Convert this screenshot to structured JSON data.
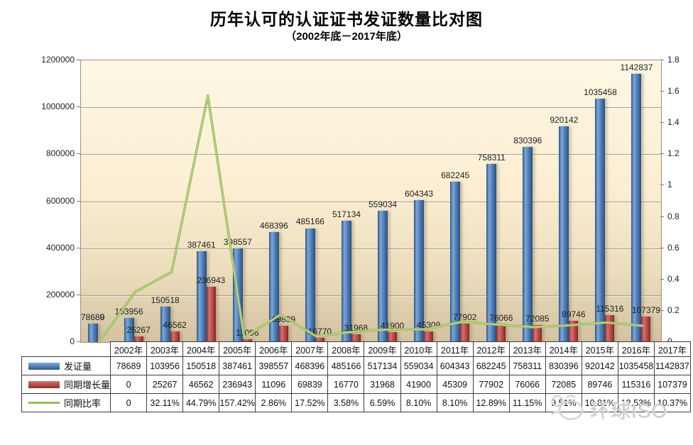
{
  "title": "历年认可的认证证书发证数量比对图",
  "subtitle": "（2002年底－2017年底）",
  "watermark_text": "环球ISO",
  "colors": {
    "bar_blue": "#4f81bd",
    "bar_red": "#c0504d",
    "line_green": "#9bbb59",
    "plot_bg_top": "#fdf7e4",
    "plot_bg_bottom": "#d2c2a0",
    "gridline": "#a89f8c"
  },
  "chart_data": {
    "type": "combo-bar-line",
    "title": "历年认可的认证证书发证数量比对图",
    "subtitle": "（2002年底－2017年底）",
    "grid": true,
    "legend_position": "table-rows-left",
    "categories": [
      "2002年",
      "2003年",
      "2004年",
      "2005年",
      "2006年",
      "2007年",
      "2008年",
      "2009年",
      "2010年",
      "2011年",
      "2012年",
      "2013年",
      "2014年",
      "2015年",
      "2016年",
      "2017年"
    ],
    "series": [
      {
        "name": "发证量",
        "type": "bar",
        "axis": "left",
        "color": "#4f81bd",
        "values": [
          78689,
          103956,
          150518,
          387461,
          398557,
          468396,
          485166,
          517134,
          559034,
          604343,
          682245,
          758311,
          830396,
          920142,
          1035458,
          1142837
        ]
      },
      {
        "name": "同期增长量",
        "type": "bar",
        "axis": "left",
        "color": "#c0504d",
        "values": [
          0,
          25267,
          46562,
          236943,
          11096,
          69839,
          16770,
          31968,
          41900,
          45309,
          77902,
          76066,
          72085,
          89746,
          115316,
          107379
        ]
      },
      {
        "name": "同期比率",
        "type": "line",
        "axis": "right",
        "color": "#9bbb59",
        "values": [
          0,
          0.3211,
          0.4479,
          1.5742,
          0.0286,
          0.1752,
          0.0358,
          0.0659,
          0.081,
          0.081,
          0.1289,
          0.1115,
          0.0951,
          0.1081,
          0.1253,
          0.1037
        ],
        "display_values": [
          "0",
          "32.11%",
          "44.79%",
          "157.42%",
          "2.86%",
          "17.52%",
          "3.58%",
          "6.59%",
          "8.10%",
          "8.10%",
          "12.89%",
          "11.15%",
          "9.51%",
          "10.81%",
          "12.53%",
          "10.37%"
        ]
      }
    ],
    "left_axis": {
      "min": 0,
      "max": 1200000,
      "step": 200000,
      "tick_labels": [
        "0",
        "200000",
        "400000",
        "600000",
        "800000",
        "1000000",
        "1200000"
      ]
    },
    "right_axis": {
      "min": 0,
      "max": 1.8,
      "step": 0.2,
      "tick_labels": [
        "0",
        "0.2",
        "0.4",
        "0.6",
        "0.8",
        "1",
        "1.2",
        "1.4",
        "1.6",
        "1.8"
      ]
    }
  }
}
